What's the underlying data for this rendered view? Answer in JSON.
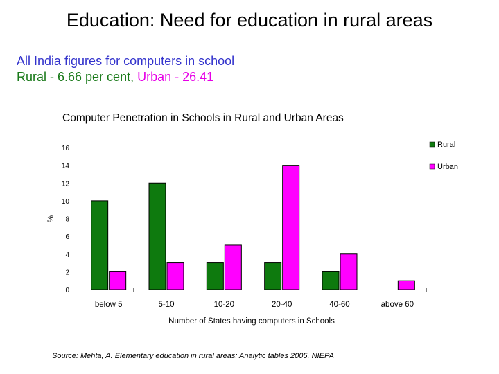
{
  "slide": {
    "title": "Education: Need for education in rural areas",
    "subtitle_line1": "All India figures for computers in school",
    "subtitle_rural": "Rural - 6.66 per cent,",
    "subtitle_urban": "Urban - 26.41",
    "source": "Source: Mehta, A. Elementary education in rural areas: Analytic tables 2005, NIEPA"
  },
  "chart_data": {
    "type": "bar",
    "title": "Computer Penetration in Schools in Rural and Urban Areas",
    "xlabel": "Number of States having computers in Schools",
    "ylabel": "%",
    "categories": [
      "below 5",
      "5-10",
      "10-20",
      "20-40",
      "40-60",
      "above 60"
    ],
    "series": [
      {
        "name": "Rural",
        "color": "#0e7a0e",
        "values": [
          10,
          12,
          3,
          3,
          2,
          0
        ]
      },
      {
        "name": "Urban",
        "color": "#ff00ff",
        "values": [
          2,
          3,
          5,
          14,
          4,
          1
        ]
      }
    ],
    "yticks": [
      0,
      2,
      4,
      6,
      8,
      10,
      12,
      14,
      16
    ],
    "ylim": [
      0,
      16
    ],
    "grid": false,
    "legend": "right"
  }
}
